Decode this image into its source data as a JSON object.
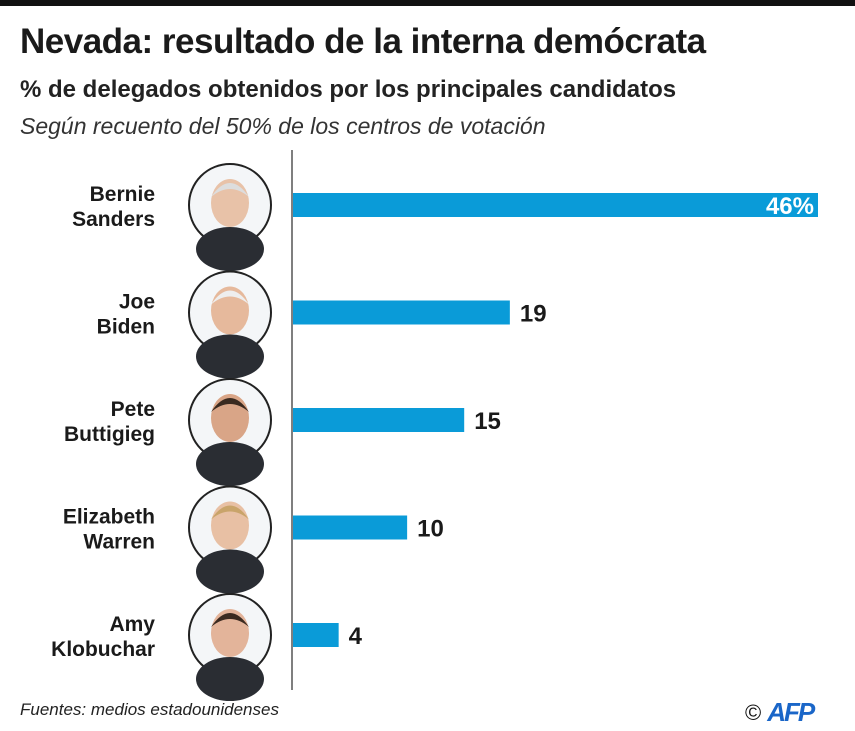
{
  "title": "Nevada: resultado de la interna demócrata",
  "subtitle": "% de delegados obtenidos por los principales candidatos",
  "note": "Según recuento del 50% de los centros de votación",
  "source": "Fuentes: medios estadounidenses",
  "logo": {
    "copyright": "©",
    "brand": "AFP"
  },
  "colors": {
    "bar": "#0a9bd8",
    "axis": "#555555"
  },
  "chart_data": {
    "type": "bar",
    "orientation": "horizontal",
    "categories": [
      [
        "Bernie",
        "Sanders"
      ],
      [
        "Joe",
        "Biden"
      ],
      [
        "Pete",
        "Buttigieg"
      ],
      [
        "Elizabeth",
        "Warren"
      ],
      [
        "Amy",
        "Klobuchar"
      ]
    ],
    "values": [
      46,
      19,
      15,
      10,
      4
    ],
    "data_labels": [
      "46%",
      "19",
      "15",
      "10",
      "4"
    ],
    "xlim": [
      0,
      46
    ],
    "grid": false
  }
}
